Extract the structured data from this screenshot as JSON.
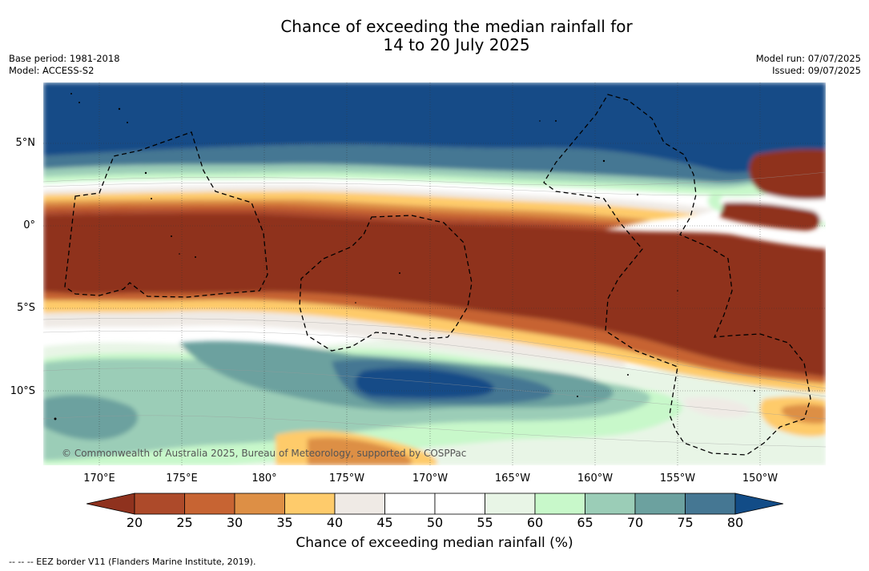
{
  "title": {
    "line1": "Chance of exceeding the median rainfall for",
    "line2": "14 to 20 July 2025"
  },
  "meta": {
    "base_period": "Base period: 1981-2018",
    "model": "Model: ACCESS-S2",
    "model_run": "Model run: 07/07/2025",
    "issued": "Issued: 09/07/2025"
  },
  "map": {
    "copyright": "© Commonwealth of Australia 2025, Bureau of Meteorology, supported by COSPPac",
    "lat_labels": [
      "5°N",
      "0°",
      "5°S",
      "10°S"
    ],
    "lon_labels": [
      "170°E",
      "175°E",
      "180°",
      "175°W",
      "170°W",
      "165°W",
      "160°W",
      "155°W",
      "150°W"
    ]
  },
  "legend": {
    "ticks": [
      "20",
      "25",
      "30",
      "35",
      "40",
      "45",
      "50",
      "55",
      "60",
      "65",
      "70",
      "75",
      "80"
    ],
    "title": "Chance of exceeding median rainfall (%)",
    "colors": {
      "below_20": "#8f321e",
      "20_25": "#ad4a2a",
      "25_30": "#c76433",
      "30_35": "#dd8f45",
      "35_40": "#fecb6b",
      "40_45": "#efeae5",
      "45_50": "#ffffff",
      "50_55": "#ffffff",
      "55_60": "#e8f5e6",
      "60_65": "#c8f8ca",
      "65_70": "#9bcdb7",
      "70_75": "#6ca19f",
      "75_80": "#457793",
      "above_80": "#124c87"
    }
  },
  "footer": "--  --  -- EEZ border V11 (Flanders Marine Institute, 2019)."
}
